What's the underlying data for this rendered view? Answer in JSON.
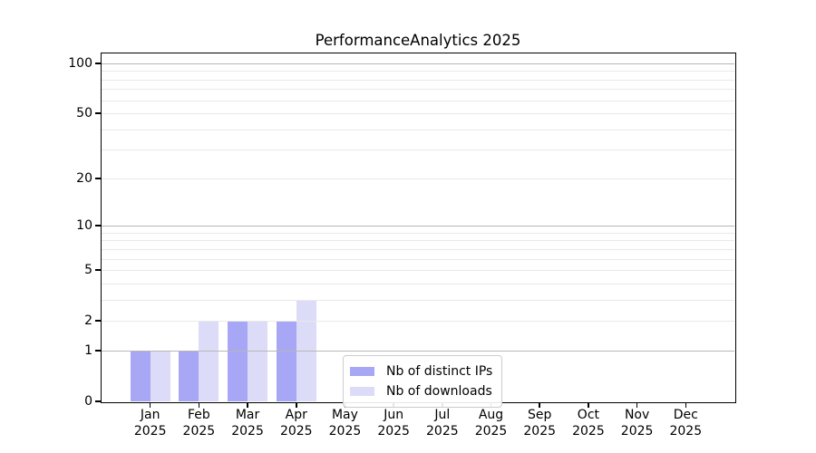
{
  "chart_data": {
    "type": "bar",
    "title": "PerformanceAnalytics 2025",
    "categories": [
      "Jan",
      "Feb",
      "Mar",
      "Apr",
      "May",
      "Jun",
      "Jul",
      "Aug",
      "Sep",
      "Oct",
      "Nov",
      "Dec"
    ],
    "year_label": "2025",
    "series": [
      {
        "name": "Nb of distinct IPs",
        "color": "#a7a7f5",
        "values": [
          1,
          1,
          2,
          2,
          0,
          0,
          0,
          0,
          0,
          0,
          0,
          0
        ]
      },
      {
        "name": "Nb of downloads",
        "color": "#dcdcf8",
        "values": [
          1,
          2,
          2,
          3,
          0,
          0,
          0,
          0,
          0,
          0,
          0,
          0
        ]
      }
    ],
    "yscale": "log1p",
    "yticks": [
      0,
      1,
      2,
      5,
      10,
      20,
      50,
      100
    ],
    "major_gridlines": [
      1,
      10,
      100
    ],
    "minor_gridlines": [
      3,
      4,
      6,
      7,
      8,
      9,
      30,
      40,
      60,
      70,
      80,
      90
    ],
    "ylim": [
      0,
      114.6
    ],
    "grid": true,
    "legend_position": "lower center"
  }
}
